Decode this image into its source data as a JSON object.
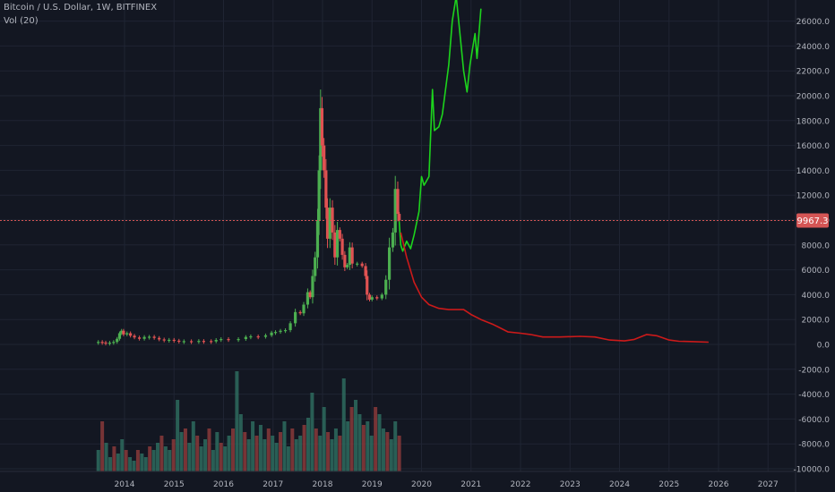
{
  "legend": {
    "title": "Bitcoin / U.S. Dollar, 1W, BITFINEX",
    "volume_label": "Vol (20)"
  },
  "price_marker": {
    "label": "9967.3",
    "value": 9967.3
  },
  "colors": {
    "background": "#131722",
    "grid": "#1f2433",
    "axis_text": "#b2b5be",
    "up": "#4caf50",
    "down": "#e05252",
    "projection_up": "#1dd41d",
    "projection_down": "#cc1a1a",
    "price_line": "#d45555",
    "volume_up": "#2e6b5e",
    "volume_down": "#8a3a3a"
  },
  "chart_data": {
    "type": "line",
    "title": "Bitcoin / U.S. Dollar, 1W, BITFINEX",
    "xlabel": "",
    "ylabel": "",
    "x_ticks": [
      "2014",
      "2015",
      "2016",
      "2017",
      "2018",
      "2019",
      "2020",
      "2021",
      "2022",
      "2023",
      "2024",
      "2025",
      "2026",
      "2027"
    ],
    "y_ticks": [
      26000,
      24000,
      22000,
      20000,
      18000,
      16000,
      14000,
      12000,
      10000,
      8000,
      6000,
      4000,
      2000,
      0,
      -2000,
      -4000,
      -6000,
      -8000,
      -10000
    ],
    "y_tick_labels": [
      "26000.0",
      "24000.0",
      "22000.0",
      "20000.0",
      "18000.0",
      "16000.0",
      "14000.0",
      "12000.0",
      "10000.0",
      "8000.0",
      "6000.0",
      "4000.0",
      "2000.0",
      "0.0",
      "-2000.0",
      "-4000.0",
      "-6000.0",
      "-8000.0",
      "-10000.0"
    ],
    "ylim": [
      -10000,
      27000
    ],
    "xlim": [
      2012.75,
      2027.75
    ],
    "grid": true,
    "series": [
      {
        "name": "",
        "style": "candlestick",
        "points": [
          [
            2013.47,
            200
          ],
          [
            2013.55,
            150
          ],
          [
            2013.62,
            130
          ],
          [
            2013.7,
            140
          ],
          [
            2013.78,
            200
          ],
          [
            2013.85,
            450
          ],
          [
            2013.9,
            900
          ],
          [
            2013.94,
            1100
          ],
          [
            2013.98,
            800
          ],
          [
            2014.05,
            900
          ],
          [
            2014.12,
            700
          ],
          [
            2014.2,
            560
          ],
          [
            2014.3,
            450
          ],
          [
            2014.4,
            600
          ],
          [
            2014.5,
            620
          ],
          [
            2014.6,
            520
          ],
          [
            2014.7,
            400
          ],
          [
            2014.8,
            350
          ],
          [
            2014.9,
            370
          ],
          [
            2015.0,
            300
          ],
          [
            2015.1,
            230
          ],
          [
            2015.2,
            260
          ],
          [
            2015.35,
            240
          ],
          [
            2015.5,
            280
          ],
          [
            2015.6,
            270
          ],
          [
            2015.75,
            240
          ],
          [
            2015.85,
            360
          ],
          [
            2015.95,
            430
          ],
          [
            2016.1,
            400
          ],
          [
            2016.3,
            430
          ],
          [
            2016.45,
            600
          ],
          [
            2016.55,
            650
          ],
          [
            2016.7,
            610
          ],
          [
            2016.85,
            730
          ],
          [
            2016.97,
            950
          ],
          [
            2017.05,
            1000
          ],
          [
            2017.15,
            1100
          ],
          [
            2017.25,
            1150
          ],
          [
            2017.35,
            1700
          ],
          [
            2017.45,
            2600
          ],
          [
            2017.55,
            2500
          ],
          [
            2017.62,
            3200
          ],
          [
            2017.7,
            4200
          ],
          [
            2017.75,
            3800
          ],
          [
            2017.8,
            5500
          ],
          [
            2017.85,
            7000
          ],
          [
            2017.9,
            10000
          ],
          [
            2017.93,
            14000
          ],
          [
            2017.96,
            19000
          ],
          [
            2017.99,
            16000
          ],
          [
            2018.03,
            14000
          ],
          [
            2018.07,
            11000
          ],
          [
            2018.1,
            8500
          ],
          [
            2018.15,
            11000
          ],
          [
            2018.2,
            9000
          ],
          [
            2018.25,
            7000
          ],
          [
            2018.3,
            9200
          ],
          [
            2018.35,
            8500
          ],
          [
            2018.4,
            7200
          ],
          [
            2018.45,
            6200
          ],
          [
            2018.5,
            6400
          ],
          [
            2018.55,
            7800
          ],
          [
            2018.6,
            6500
          ],
          [
            2018.7,
            6500
          ],
          [
            2018.8,
            6300
          ],
          [
            2018.87,
            5500
          ],
          [
            2018.9,
            4000
          ],
          [
            2018.95,
            3600
          ],
          [
            2019.0,
            3800
          ],
          [
            2019.1,
            3700
          ],
          [
            2019.2,
            4000
          ],
          [
            2019.28,
            5200
          ],
          [
            2019.35,
            7800
          ],
          [
            2019.42,
            9000
          ],
          [
            2019.47,
            12500
          ],
          [
            2019.52,
            10500
          ],
          [
            2019.55,
            9967
          ]
        ]
      },
      {
        "name": "",
        "style": "projection-up",
        "points": [
          [
            2019.55,
            9900
          ],
          [
            2019.58,
            8000
          ],
          [
            2019.62,
            7500
          ],
          [
            2019.7,
            8300
          ],
          [
            2019.78,
            7700
          ],
          [
            2019.85,
            8800
          ],
          [
            2019.95,
            10700
          ],
          [
            2020.0,
            13500
          ],
          [
            2020.05,
            12800
          ],
          [
            2020.15,
            13500
          ],
          [
            2020.22,
            20500
          ],
          [
            2020.26,
            17200
          ],
          [
            2020.35,
            17500
          ],
          [
            2020.42,
            18500
          ],
          [
            2020.55,
            22500
          ],
          [
            2020.62,
            26000
          ],
          [
            2020.7,
            28000
          ],
          [
            2020.85,
            22000
          ],
          [
            2020.92,
            20300
          ],
          [
            2020.98,
            22500
          ],
          [
            2021.08,
            25000
          ],
          [
            2021.12,
            23000
          ],
          [
            2021.2,
            27000
          ]
        ]
      },
      {
        "name": "",
        "style": "projection-down",
        "points": [
          [
            2019.58,
            9000
          ],
          [
            2019.7,
            7000
          ],
          [
            2019.85,
            5000
          ],
          [
            2020.0,
            3800
          ],
          [
            2020.15,
            3200
          ],
          [
            2020.35,
            2900
          ],
          [
            2020.55,
            2800
          ],
          [
            2020.85,
            2800
          ],
          [
            2021.0,
            2400
          ],
          [
            2021.2,
            2000
          ],
          [
            2021.45,
            1600
          ],
          [
            2021.55,
            1400
          ],
          [
            2021.75,
            1000
          ],
          [
            2022.0,
            900
          ],
          [
            2022.2,
            800
          ],
          [
            2022.45,
            600
          ],
          [
            2022.8,
            600
          ],
          [
            2023.2,
            650
          ],
          [
            2023.5,
            600
          ],
          [
            2023.8,
            350
          ],
          [
            2024.1,
            280
          ],
          [
            2024.3,
            400
          ],
          [
            2024.55,
            800
          ],
          [
            2024.75,
            700
          ],
          [
            2025.0,
            350
          ],
          [
            2025.2,
            250
          ],
          [
            2025.5,
            220
          ],
          [
            2025.8,
            180
          ]
        ]
      },
      {
        "name": "Vol (20)",
        "style": "volume",
        "values_relative": [
          0.3,
          0.7,
          0.4,
          0.2,
          0.35,
          0.25,
          0.45,
          0.3,
          0.2,
          0.15,
          0.3,
          0.25,
          0.2,
          0.35,
          0.3,
          0.4,
          0.5,
          0.35,
          0.3,
          0.45,
          1.0,
          0.55,
          0.6,
          0.4,
          0.7,
          0.5,
          0.35,
          0.45,
          0.6,
          0.3,
          0.55,
          0.4,
          0.35,
          0.5,
          0.6,
          1.4,
          0.8,
          0.55,
          0.45,
          0.7,
          0.5,
          0.65,
          0.45,
          0.6,
          0.5,
          0.4,
          0.55,
          0.7,
          0.35,
          0.6,
          0.45,
          0.5,
          0.65,
          0.75,
          1.1,
          0.6,
          0.5,
          0.9,
          0.55,
          0.45,
          0.6,
          0.5,
          1.3,
          0.7,
          0.9,
          1.0,
          0.8,
          0.65,
          0.7,
          0.5,
          0.9,
          0.8,
          0.6,
          0.55,
          0.45,
          0.7,
          0.5
        ]
      }
    ]
  }
}
